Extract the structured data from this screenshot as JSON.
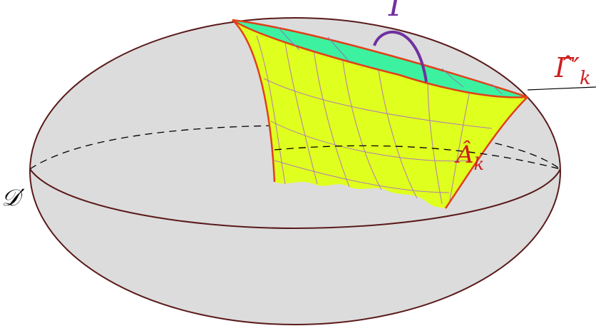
{
  "labels": [
    {
      "text": "Γ"
    },
    {
      "text": "Γ̂′",
      "subscript": "k"
    },
    {
      "text": "Â",
      "subscript": "k"
    },
    {
      "text": "𝒟′"
    }
  ]
}
